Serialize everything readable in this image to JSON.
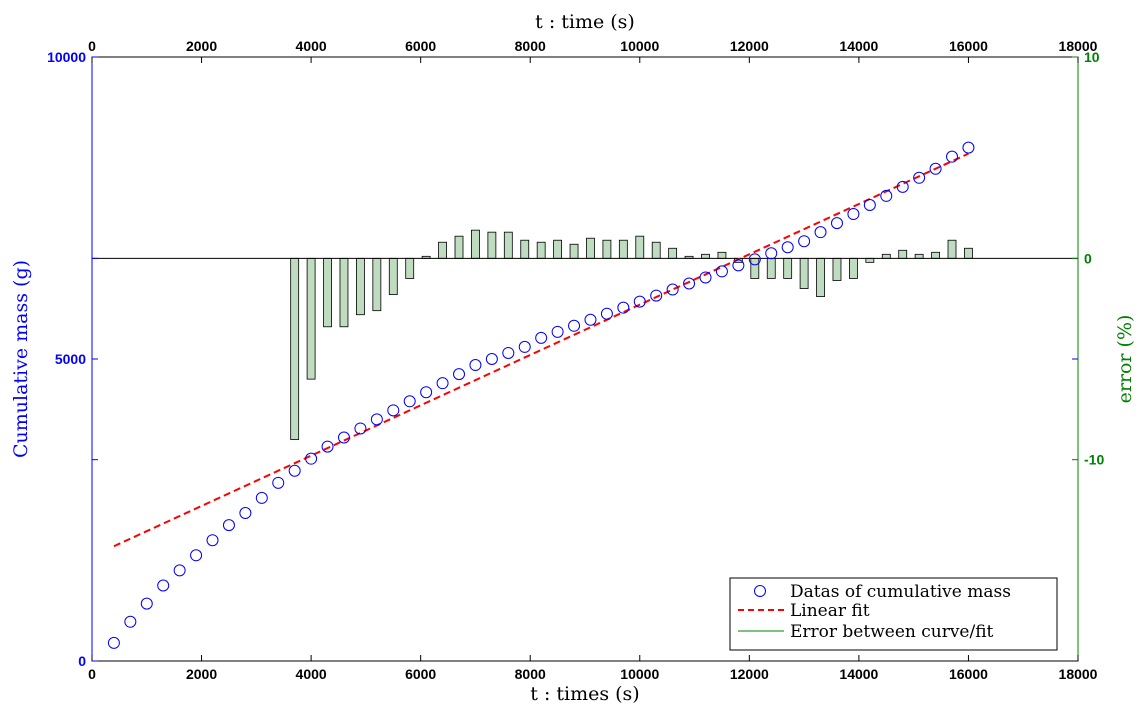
{
  "chart_data": {
    "type": "scatter",
    "xlabel_bottom": "t : times (s)",
    "xlabel_top": "t : time (s)",
    "ylabel_left": "Cumulative mass (g)",
    "ylabel_right": "error (%)",
    "xlim": [
      0,
      18000
    ],
    "ylim_left": [
      0,
      10000
    ],
    "ylim_right": [
      -20,
      10
    ],
    "x_ticks": [
      "0",
      "2000",
      "4000",
      "6000",
      "8000",
      "10000",
      "12000",
      "14000",
      "16000",
      "18000"
    ],
    "x_tick_values": [
      0,
      2000,
      4000,
      6000,
      8000,
      10000,
      12000,
      14000,
      16000,
      18000
    ],
    "y_left_ticks": [
      "0",
      "5000",
      "10000"
    ],
    "y_left_tick_values": [
      0,
      5000,
      10000
    ],
    "y_right_ticks": [
      "-10",
      "0",
      "10"
    ],
    "y_right_tick_values": [
      -10,
      0,
      10
    ],
    "legend": {
      "placement": "bottom-right",
      "entries": [
        "Datas of cumulative mass",
        "Linear fit",
        "Error between curve/fit"
      ]
    },
    "colors": {
      "left_axis": "#0000ff",
      "right_axis": "#008000",
      "markers": "#0000ff",
      "fit_line": "#ff0000",
      "error_bar_fill": "#c0dcc0",
      "error_bar_edge": "#000000",
      "error_legend_line": "#008000"
    },
    "series": [
      {
        "name": "Datas of cumulative mass",
        "kind": "scatter",
        "x": [
          400,
          700,
          1000,
          1300,
          1600,
          1900,
          2200,
          2500,
          2800,
          3100,
          3400,
          3700,
          4000,
          4300,
          4600,
          4900,
          5200,
          5500,
          5800,
          6100,
          6400,
          6700,
          7000,
          7300,
          7600,
          7900,
          8200,
          8500,
          8800,
          9100,
          9400,
          9700,
          10000,
          10300,
          10600,
          10900,
          11200,
          11500,
          11800,
          12100,
          12400,
          12700,
          13000,
          13300,
          13600,
          13900,
          14200,
          14500,
          14800,
          15100,
          15400,
          15700,
          16000
        ],
        "y": [
          300,
          650,
          950,
          1250,
          1500,
          1750,
          2000,
          2250,
          2450,
          2700,
          2950,
          3150,
          3350,
          3550,
          3700,
          3850,
          4000,
          4150,
          4300,
          4450,
          4600,
          4750,
          4900,
          5000,
          5100,
          5200,
          5350,
          5450,
          5550,
          5650,
          5750,
          5850,
          5950,
          6050,
          6150,
          6250,
          6350,
          6450,
          6550,
          6650,
          6750,
          6850,
          6950,
          7100,
          7250,
          7400,
          7550,
          7700,
          7850,
          8000,
          8150,
          8350,
          8500
        ]
      },
      {
        "name": "Linear fit",
        "kind": "line",
        "x": [
          400,
          16000
        ],
        "y": [
          1900,
          8400
        ]
      },
      {
        "name": "Error between curve/fit",
        "kind": "bar",
        "x": [
          3700,
          4000,
          4300,
          4600,
          4900,
          5200,
          5500,
          5800,
          6100,
          6400,
          6700,
          7000,
          7300,
          7600,
          7900,
          8200,
          8500,
          8800,
          9100,
          9400,
          9700,
          10000,
          10300,
          10600,
          10900,
          11200,
          11500,
          11800,
          12100,
          12400,
          12700,
          13000,
          13300,
          13600,
          13900,
          14200,
          14500,
          14800,
          15100,
          15400,
          15700,
          16000
        ],
        "y": [
          -9.0,
          -6.0,
          -3.4,
          -3.4,
          -2.8,
          -2.6,
          -1.8,
          -1.0,
          0.1,
          0.8,
          1.1,
          1.4,
          1.3,
          1.3,
          0.9,
          0.8,
          0.9,
          0.7,
          1.0,
          0.9,
          0.9,
          1.1,
          0.8,
          0.5,
          0.1,
          0.2,
          0.3,
          -0.2,
          -1.0,
          -1.0,
          -1.0,
          -1.5,
          -1.9,
          -1.1,
          -1.0,
          -0.2,
          0.2,
          0.4,
          0.2,
          0.3,
          0.9,
          0.5
        ]
      }
    ]
  }
}
